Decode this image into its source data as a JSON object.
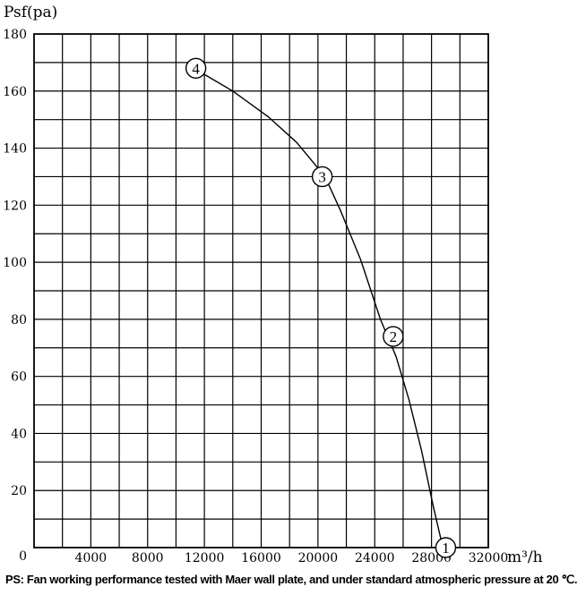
{
  "chart_data": {
    "type": "line",
    "ylabel": "Psf(pa)",
    "xlabel": "m³/h",
    "xlim": [
      0,
      32000
    ],
    "ylim": [
      0,
      180
    ],
    "x_ticks": [
      0,
      4000,
      8000,
      12000,
      16000,
      20000,
      24000,
      28000,
      32000
    ],
    "x_tick_labels": [
      "",
      "4000",
      "8000",
      "12000",
      "16000",
      "20000",
      "24000",
      "28000",
      "32000"
    ],
    "y_ticks": [
      0,
      20,
      40,
      60,
      80,
      100,
      120,
      140,
      160,
      180
    ],
    "y_tick_labels": [
      "0",
      "20",
      "40",
      "60",
      "80",
      "100",
      "120",
      "140",
      "160",
      "180"
    ],
    "grid": true,
    "grid_minor": {
      "x_step": 2000,
      "y_step": 10
    },
    "series": [
      {
        "color": "#000000",
        "x": [
          11600,
          14000,
          16500,
          18500,
          20500,
          21600,
          23000,
          24400,
          25500,
          26400,
          27300,
          28100,
          28800
        ],
        "y": [
          167,
          160,
          151,
          142,
          130,
          118,
          101,
          80,
          67,
          52,
          34,
          15,
          0
        ]
      }
    ],
    "markers": [
      {
        "label": "1",
        "x": 29000,
        "y": 0
      },
      {
        "label": "2",
        "x": 25300,
        "y": 74
      },
      {
        "label": "3",
        "x": 20300,
        "y": 130
      },
      {
        "label": "4",
        "x": 11400,
        "y": 168
      }
    ]
  },
  "footnote": "PS: Fan working performance tested with Maer wall plate, and under standard atmospheric pressure at 20 ℃."
}
